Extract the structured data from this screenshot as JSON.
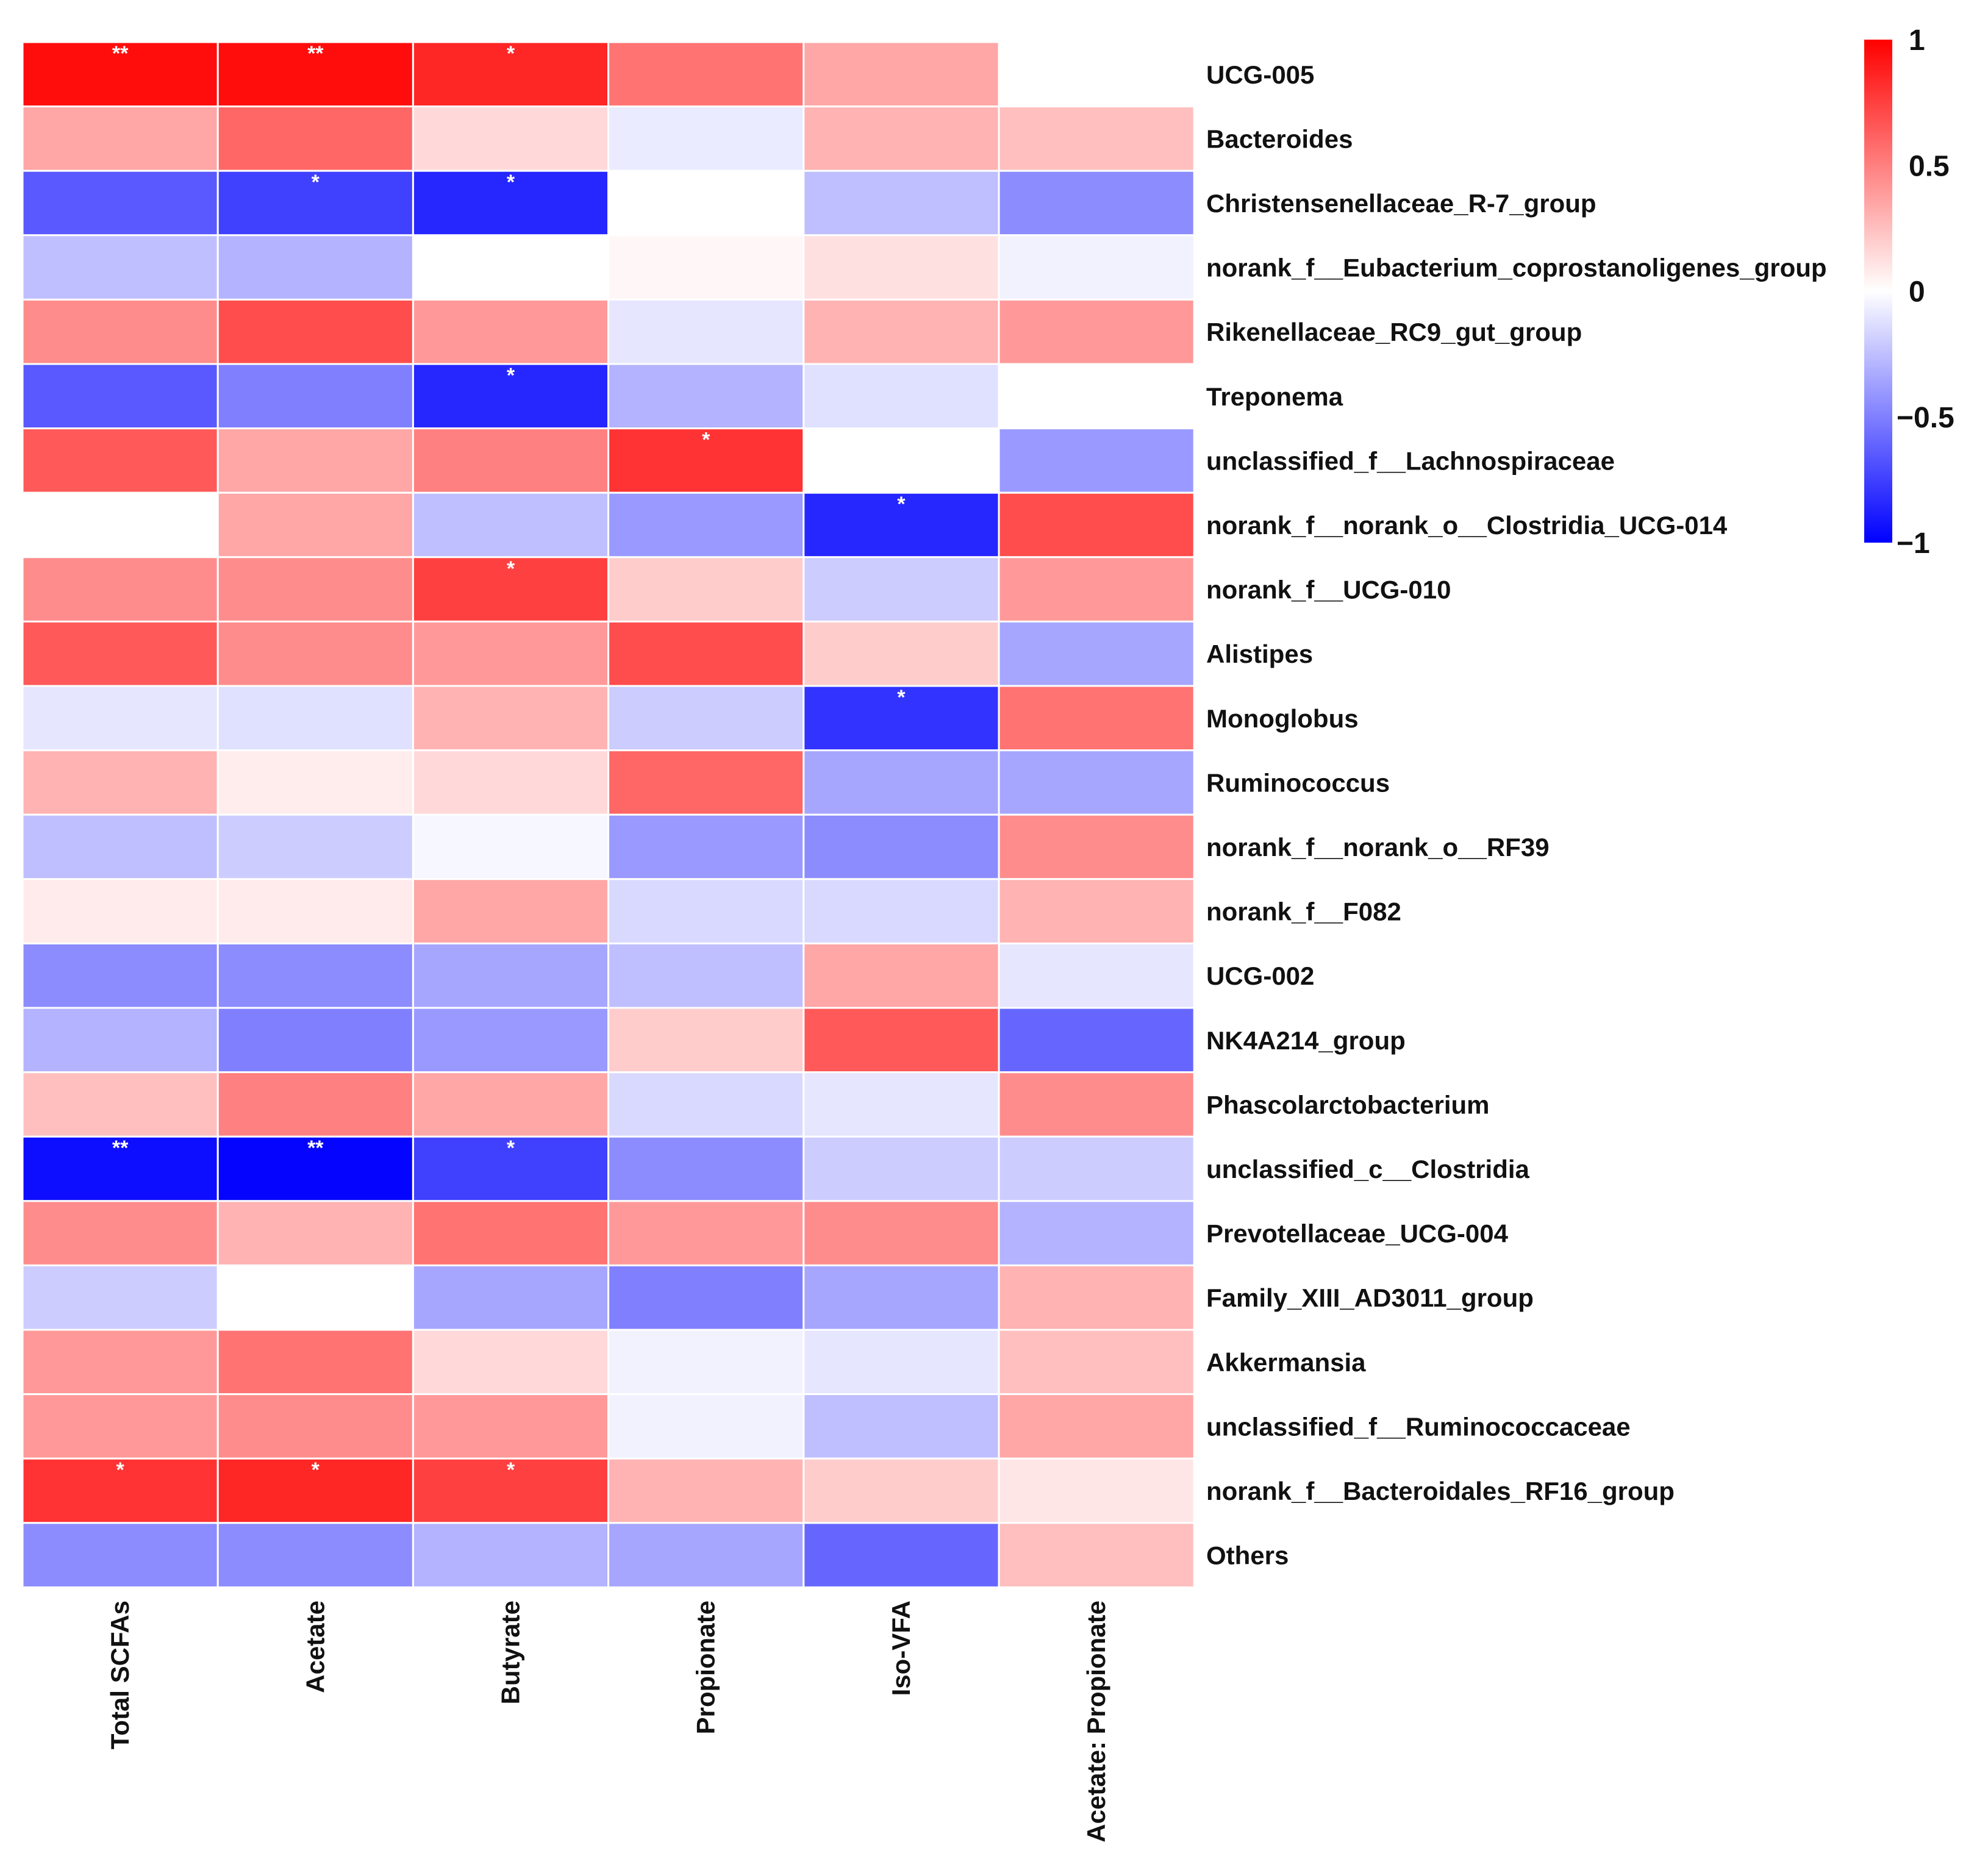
{
  "chart_data": {
    "type": "heatmap",
    "title": "",
    "columns": [
      "Total SCFAs",
      "Acetate",
      "Butyrate",
      "Propionate",
      "Iso-VFA",
      "Acetate: Propionate"
    ],
    "rows": [
      "UCG-005",
      "Bacteroides",
      "Christensenellaceae_R-7_group",
      "norank_f__Eubacterium_coprostanoligenes_group",
      "Rikenellaceae_RC9_gut_group",
      "Treponema",
      "unclassified_f__Lachnospiraceae",
      "norank_f__norank_o__Clostridia_UCG-014",
      "norank_f__UCG-010",
      "Alistipes",
      "Monoglobus",
      "Ruminococcus",
      "norank_f__norank_o__RF39",
      "norank_f__F082",
      "UCG-002",
      "NK4A214_group",
      "Phascolarctobacterium",
      "unclassified_c__Clostridia",
      "Prevotellaceae_UCG-004",
      "Family_XIII_AD3011_group",
      "Akkermansia",
      "unclassified_f__Ruminococcaceae",
      "norank_f__Bacteroidales_RF16_group",
      "Others"
    ],
    "values": [
      [
        0.95,
        0.95,
        0.85,
        0.55,
        0.35,
        0.0
      ],
      [
        0.35,
        0.6,
        0.15,
        -0.08,
        0.3,
        0.25
      ],
      [
        -0.65,
        -0.75,
        -0.85,
        0.0,
        -0.25,
        -0.45
      ],
      [
        -0.25,
        -0.3,
        0.0,
        0.03,
        0.12,
        -0.05
      ],
      [
        0.45,
        0.7,
        0.4,
        -0.1,
        0.3,
        0.4
      ],
      [
        -0.65,
        -0.5,
        -0.85,
        -0.3,
        -0.12,
        0.0
      ],
      [
        0.65,
        0.35,
        0.5,
        0.8,
        0.0,
        -0.4
      ],
      [
        0.0,
        0.35,
        -0.25,
        -0.4,
        -0.85,
        0.7
      ],
      [
        0.45,
        0.45,
        0.75,
        0.2,
        -0.2,
        0.4
      ],
      [
        0.65,
        0.45,
        0.4,
        0.7,
        0.2,
        -0.35
      ],
      [
        -0.1,
        -0.12,
        0.3,
        -0.2,
        -0.8,
        0.55
      ],
      [
        0.3,
        0.07,
        0.15,
        0.6,
        -0.35,
        -0.35
      ],
      [
        -0.25,
        -0.2,
        -0.03,
        -0.4,
        -0.45,
        0.45
      ],
      [
        0.08,
        0.08,
        0.35,
        -0.15,
        -0.15,
        0.3
      ],
      [
        -0.45,
        -0.45,
        -0.35,
        -0.25,
        0.35,
        -0.1
      ],
      [
        -0.3,
        -0.5,
        -0.4,
        0.2,
        0.65,
        -0.6
      ],
      [
        0.25,
        0.5,
        0.35,
        -0.15,
        -0.1,
        0.45
      ],
      [
        -0.95,
        -0.98,
        -0.75,
        -0.45,
        -0.2,
        -0.2
      ],
      [
        0.45,
        0.3,
        0.55,
        0.4,
        0.45,
        -0.3
      ],
      [
        -0.2,
        0.0,
        -0.35,
        -0.5,
        -0.35,
        0.3
      ],
      [
        0.4,
        0.55,
        0.15,
        -0.05,
        -0.1,
        0.25
      ],
      [
        0.4,
        0.45,
        0.4,
        -0.05,
        -0.25,
        0.35
      ],
      [
        0.8,
        0.85,
        0.75,
        0.3,
        0.2,
        0.1
      ],
      [
        -0.45,
        -0.45,
        -0.3,
        -0.35,
        -0.6,
        0.25
      ]
    ],
    "significance": [
      [
        "**",
        "**",
        "*",
        "",
        "",
        ""
      ],
      [
        "",
        "",
        "",
        "",
        "",
        ""
      ],
      [
        "",
        "*",
        "*",
        "",
        "",
        ""
      ],
      [
        "",
        "",
        "",
        "",
        "",
        ""
      ],
      [
        "",
        "",
        "",
        "",
        "",
        ""
      ],
      [
        "",
        "",
        "*",
        "",
        "",
        ""
      ],
      [
        "",
        "",
        "",
        "*",
        "",
        ""
      ],
      [
        "",
        "",
        "",
        "",
        "*",
        ""
      ],
      [
        "",
        "",
        "*",
        "",
        "",
        ""
      ],
      [
        "",
        "",
        "",
        "",
        "",
        ""
      ],
      [
        "",
        "",
        "",
        "",
        "*",
        ""
      ],
      [
        "",
        "",
        "",
        "",
        "",
        ""
      ],
      [
        "",
        "",
        "",
        "",
        "",
        ""
      ],
      [
        "",
        "",
        "",
        "",
        "",
        ""
      ],
      [
        "",
        "",
        "",
        "",
        "",
        ""
      ],
      [
        "",
        "",
        "",
        "",
        "",
        ""
      ],
      [
        "",
        "",
        "",
        "",
        "",
        ""
      ],
      [
        "**",
        "**",
        "*",
        "",
        "",
        ""
      ],
      [
        "",
        "",
        "",
        "",
        "",
        ""
      ],
      [
        "",
        "",
        "",
        "",
        "",
        ""
      ],
      [
        "",
        "",
        "",
        "",
        "",
        ""
      ],
      [
        "",
        "",
        "",
        "",
        "",
        ""
      ],
      [
        "*",
        "*",
        "*",
        "",
        "",
        ""
      ],
      [
        "",
        "",
        "",
        "",
        "",
        ""
      ]
    ],
    "colorbar": {
      "range": [
        -1,
        1
      ],
      "ticks": [
        "1",
        "0.5",
        "0",
        "−0.5",
        "−1"
      ],
      "tick_values": [
        1,
        0.5,
        0,
        -0.5,
        -1
      ],
      "low_color": "#0000FF",
      "mid_color": "#FFFFFF",
      "high_color": "#FF0000",
      "placement": "top-right"
    }
  }
}
